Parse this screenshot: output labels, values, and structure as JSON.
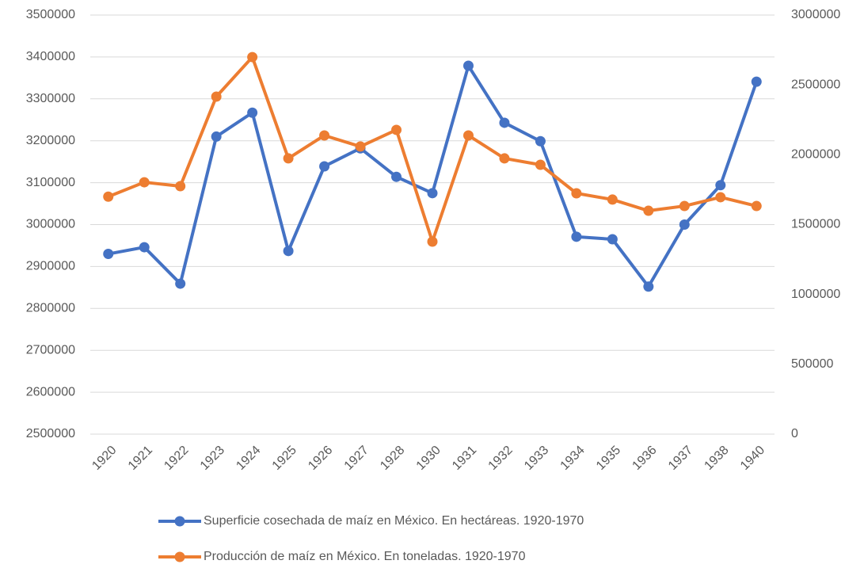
{
  "chart_data": {
    "type": "line",
    "categories": [
      "1920",
      "1921",
      "1922",
      "1923",
      "1924",
      "1925",
      "1926",
      "1927",
      "1928",
      "1930",
      "1931",
      "1932",
      "1933",
      "1934",
      "1935",
      "1936",
      "1937",
      "1938",
      "1940"
    ],
    "series": [
      {
        "name": "Superficie cosechada de maíz en México. En hectáreas. 1920-1970",
        "color": "#4472c4",
        "values": [
          2930000,
          2946000,
          2859000,
          3210000,
          3267000,
          2937000,
          3139000,
          3182000,
          3114000,
          3075000,
          3379000,
          3243000,
          3199000,
          2971000,
          2965000,
          2852000,
          3000000,
          3094000,
          3341000
        ]
      },
      {
        "name": "Producción de maíz en México. En toneladas. 1920-1970",
        "color": "#ed7d31",
        "axis": "y2",
        "values": [
          1700000,
          1803000,
          1775000,
          2416000,
          2699000,
          1974000,
          2138000,
          2059000,
          2178000,
          1378000,
          2138000,
          1974000,
          1928000,
          1724000,
          1679000,
          1599000,
          1633000,
          1696000,
          1633000
        ]
      }
    ],
    "ylim": [
      2500000,
      3500000
    ],
    "yticks": [
      2500000,
      2600000,
      2700000,
      2800000,
      2900000,
      3000000,
      3100000,
      3200000,
      3300000,
      3400000,
      3500000
    ],
    "y2lim": [
      0,
      3000000
    ],
    "y2ticks": [
      0,
      500000,
      1000000,
      1500000,
      2000000,
      2500000,
      3000000
    ],
    "grid": true,
    "legend": "bottom"
  }
}
